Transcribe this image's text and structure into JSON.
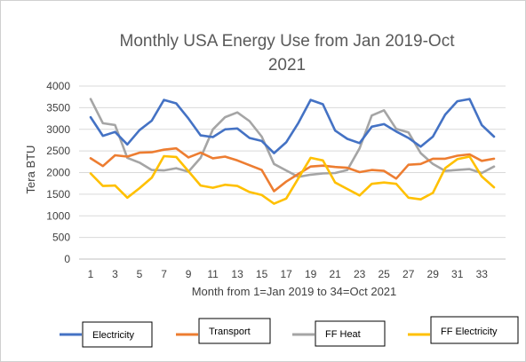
{
  "chart_data": {
    "type": "line",
    "title_line1": "Monthly USA Energy Use from Jan 2019-Oct",
    "title_line2": "2021",
    "xlabel": "Month from 1=Jan 2019 to 34=Oct 2021",
    "ylabel": "Tera BTU",
    "ylim": [
      0,
      4000
    ],
    "yticks": [
      0,
      500,
      1000,
      1500,
      2000,
      2500,
      3000,
      3500,
      4000
    ],
    "xlim": [
      1,
      34
    ],
    "xticks": [
      1,
      3,
      5,
      7,
      9,
      11,
      13,
      15,
      17,
      19,
      21,
      23,
      25,
      27,
      29,
      31,
      33
    ],
    "grid": "horizontal",
    "legend": "bottom",
    "x": [
      1,
      2,
      3,
      4,
      5,
      6,
      7,
      8,
      9,
      10,
      11,
      12,
      13,
      14,
      15,
      16,
      17,
      18,
      19,
      20,
      21,
      22,
      23,
      24,
      25,
      26,
      27,
      28,
      29,
      30,
      31,
      32,
      33,
      34
    ],
    "series": [
      {
        "name": "Electricity",
        "color": "#4472C4",
        "values": [
          3280,
          2850,
          2940,
          2650,
          2980,
          3200,
          3680,
          3600,
          3250,
          2860,
          2820,
          3000,
          3020,
          2800,
          2730,
          2450,
          2700,
          3150,
          3680,
          3580,
          2970,
          2780,
          2680,
          3060,
          3120,
          2950,
          2800,
          2600,
          2830,
          3340,
          3650,
          3700,
          3100,
          2830
        ]
      },
      {
        "name": "Transport",
        "color": "#ED7D31",
        "values": [
          2330,
          2150,
          2400,
          2370,
          2460,
          2470,
          2530,
          2560,
          2350,
          2460,
          2330,
          2370,
          2280,
          2170,
          2060,
          1570,
          1790,
          1970,
          2140,
          2160,
          2130,
          2110,
          2010,
          2060,
          2040,
          1860,
          2180,
          2200,
          2320,
          2320,
          2390,
          2420,
          2270,
          2320
        ]
      },
      {
        "name": "FF Heat",
        "color": "#A5A5A5",
        "values": [
          3700,
          3140,
          3100,
          2340,
          2230,
          2060,
          2050,
          2100,
          2020,
          2340,
          3000,
          3280,
          3390,
          3190,
          2830,
          2200,
          2050,
          1900,
          1950,
          1980,
          1990,
          2060,
          2560,
          3320,
          3440,
          3010,
          2930,
          2450,
          2200,
          2040,
          2060,
          2080,
          1990,
          2140
        ]
      },
      {
        "name": "FF Electricity",
        "color": "#FFC000",
        "values": [
          1980,
          1690,
          1700,
          1420,
          1640,
          1880,
          2380,
          2360,
          2030,
          1700,
          1650,
          1720,
          1690,
          1550,
          1480,
          1280,
          1400,
          1870,
          2340,
          2280,
          1770,
          1620,
          1470,
          1740,
          1770,
          1740,
          1420,
          1380,
          1530,
          2100,
          2310,
          2370,
          1910,
          1660
        ]
      }
    ]
  }
}
